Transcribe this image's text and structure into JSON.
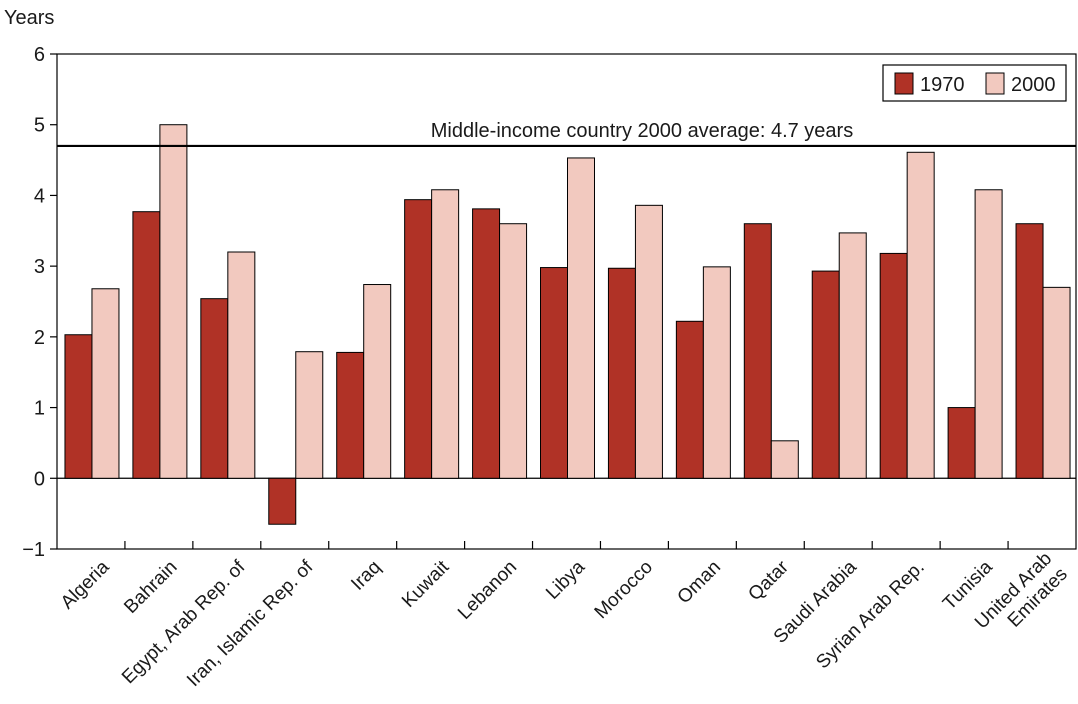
{
  "chart_data": {
    "type": "bar",
    "title": "",
    "ylabel": "Years",
    "xlabel": "",
    "ylim": [
      -1,
      6
    ],
    "yticks": [
      -1,
      0,
      1,
      2,
      3,
      4,
      5,
      6
    ],
    "ytick_labels": [
      "−1",
      "0",
      "1",
      "2",
      "3",
      "4",
      "5",
      "6"
    ],
    "grid": false,
    "legend_position": "top-right",
    "categories": [
      "Algeria",
      "Bahrain",
      "Egypt, Arab Rep. of",
      "Iran, Islamic Rep. of",
      "Iraq",
      "Kuwait",
      "Lebanon",
      "Libya",
      "Morocco",
      "Oman",
      "Qatar",
      "Saudi Arabia",
      "Syrian Arab Rep.",
      "Tunisia",
      "United Arab Emirates"
    ],
    "category_label_lines": [
      [
        "Algeria"
      ],
      [
        "Bahrain"
      ],
      [
        "Egypt, Arab Rep. of"
      ],
      [
        "Iran, Islamic Rep. of"
      ],
      [
        "Iraq"
      ],
      [
        "Kuwait"
      ],
      [
        "Lebanon"
      ],
      [
        "Libya"
      ],
      [
        "Morocco"
      ],
      [
        "Oman"
      ],
      [
        "Qatar"
      ],
      [
        "Saudi Arabia"
      ],
      [
        "Syrian Arab Rep."
      ],
      [
        "Tunisia"
      ],
      [
        "United Arab",
        "Emirates"
      ]
    ],
    "series": [
      {
        "name": "1970",
        "color": "#b03226",
        "values": [
          2.03,
          3.77,
          2.54,
          -0.65,
          1.78,
          3.94,
          3.81,
          2.98,
          2.97,
          2.22,
          3.6,
          2.93,
          3.18,
          1.0,
          3.6
        ]
      },
      {
        "name": "2000",
        "color": "#f2c9bf",
        "values": [
          2.68,
          5.0,
          3.2,
          1.79,
          2.74,
          4.08,
          3.6,
          4.53,
          3.86,
          2.99,
          0.53,
          3.47,
          4.61,
          4.08,
          2.7
        ]
      }
    ],
    "reference_line": {
      "value": 4.7,
      "label": "Middle-income country 2000 average: 4.7 years"
    }
  }
}
